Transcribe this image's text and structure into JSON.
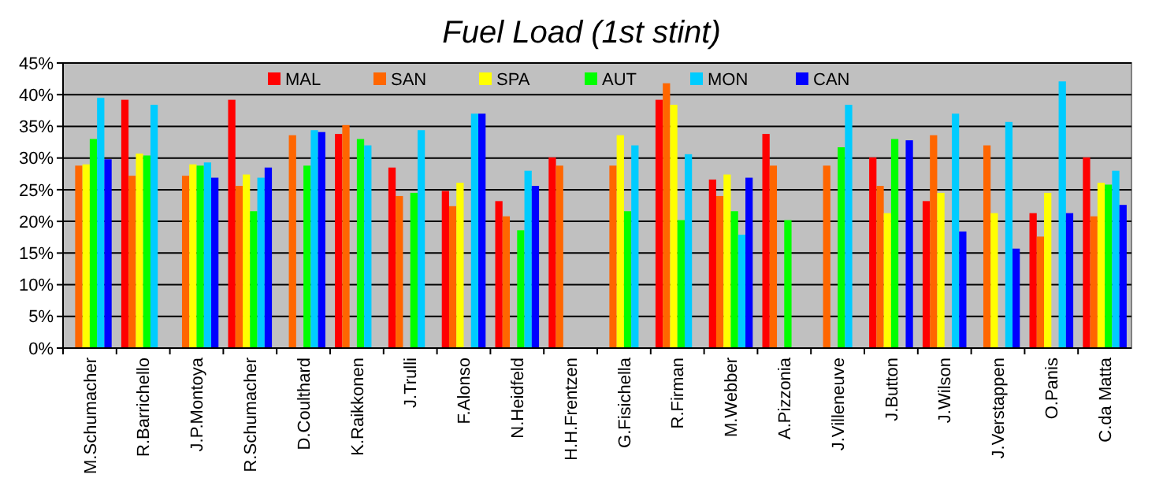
{
  "chart_data": {
    "type": "bar",
    "title": "Fuel Load (1st stint)",
    "categories": [
      "M.Schumacher",
      "R.Barrichello",
      "J.P.Montoya",
      "R.Schumacher",
      "D.Coulthard",
      "K.Raikkonen",
      "J.Trulli",
      "F.Alonso",
      "N.Heidfeld",
      "H.H.Frentzen",
      "G.Fisichella",
      "R.Firman",
      "M.Webber",
      "A.Pizzonia",
      "J.Villeneuve",
      "J.Button",
      "J.Wilson",
      "J.Verstappen",
      "O.Panis",
      "C.da Matta"
    ],
    "series": [
      {
        "name": "MAL",
        "color": "#ff0000",
        "values": [
          null,
          39.2,
          null,
          39.2,
          null,
          33.8,
          28.5,
          24.8,
          23.2,
          30.1,
          null,
          39.2,
          26.6,
          33.8,
          null,
          30.1,
          23.2,
          null,
          21.3,
          30.1
        ]
      },
      {
        "name": "SAN",
        "color": "#ff6600",
        "values": [
          28.8,
          27.2,
          27.2,
          25.6,
          33.6,
          35.2,
          24.0,
          22.4,
          20.8,
          28.8,
          28.8,
          41.8,
          24.0,
          28.8,
          28.8,
          25.6,
          33.6,
          32.0,
          17.6,
          20.8
        ]
      },
      {
        "name": "SPA",
        "color": "#ffff00",
        "values": [
          29.0,
          30.7,
          29.0,
          27.4,
          null,
          null,
          null,
          26.1,
          null,
          null,
          33.6,
          38.4,
          27.4,
          null,
          null,
          21.3,
          24.5,
          21.3,
          24.5,
          26.1
        ]
      },
      {
        "name": "AUT",
        "color": "#00ff00",
        "values": [
          33.0,
          30.4,
          28.8,
          21.6,
          28.8,
          33.0,
          24.5,
          null,
          18.6,
          null,
          21.6,
          20.2,
          21.6,
          20.2,
          31.7,
          33.0,
          null,
          null,
          null,
          25.8
        ]
      },
      {
        "name": "MON",
        "color": "#00ccff",
        "values": [
          39.5,
          38.4,
          29.3,
          26.9,
          34.4,
          32.0,
          34.4,
          37.0,
          28.0,
          null,
          32.0,
          30.6,
          17.9,
          null,
          38.4,
          null,
          37.0,
          35.7,
          42.1,
          28.0
        ]
      },
      {
        "name": "CAN",
        "color": "#0000ff",
        "values": [
          29.8,
          null,
          26.9,
          28.5,
          34.1,
          null,
          null,
          37.0,
          25.6,
          null,
          null,
          null,
          26.9,
          null,
          null,
          32.8,
          18.4,
          15.7,
          21.3,
          22.6
        ]
      }
    ],
    "ylim": [
      0,
      45
    ],
    "yticks": [
      {
        "value": 0,
        "label": "0%"
      },
      {
        "value": 5,
        "label": "5%"
      },
      {
        "value": 10,
        "label": "10%"
      },
      {
        "value": 15,
        "label": "15%"
      },
      {
        "value": 20,
        "label": "20%"
      },
      {
        "value": 25,
        "label": "25%"
      },
      {
        "value": 30,
        "label": "30%"
      },
      {
        "value": 35,
        "label": "35%"
      },
      {
        "value": 40,
        "label": "40%"
      },
      {
        "value": 45,
        "label": "45%"
      }
    ],
    "grid": "y",
    "legend": "top"
  }
}
